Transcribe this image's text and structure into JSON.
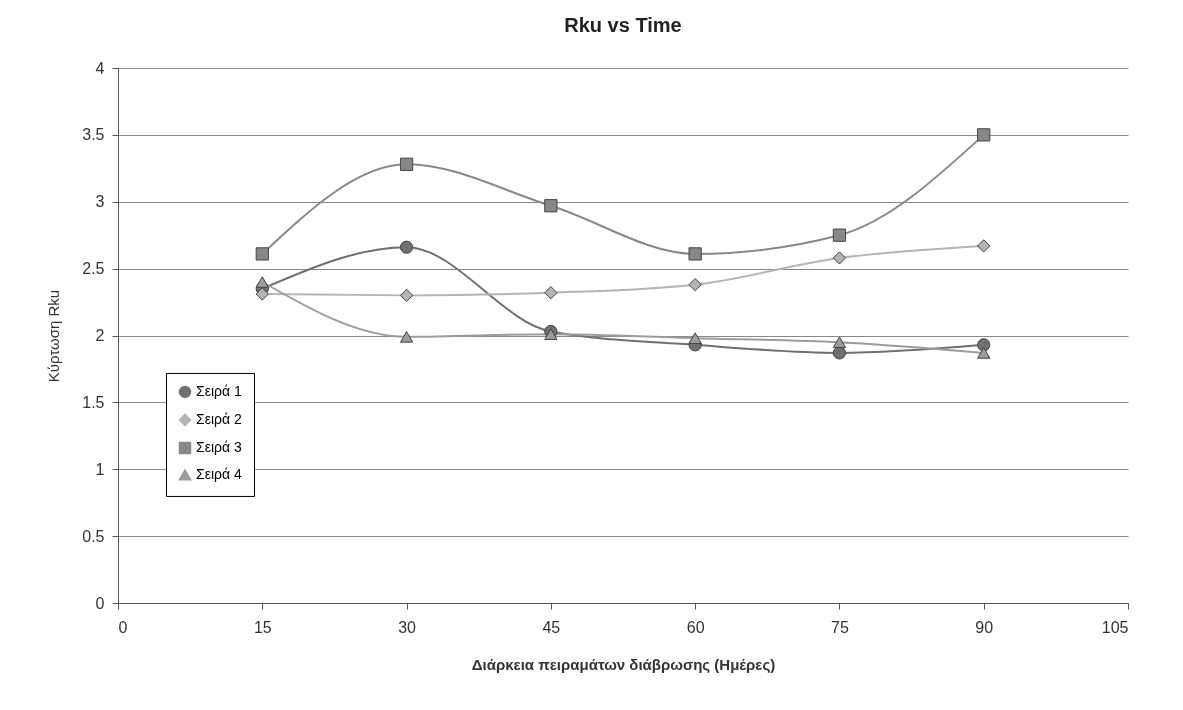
{
  "chart_data": {
    "type": "line",
    "title": "Rku vs Time",
    "xlabel": "Διάρκεια πειραμάτων διάβρωσης (Ημέρες)",
    "ylabel": "Κύρτωση Rku",
    "x": [
      15,
      30,
      45,
      60,
      75,
      90
    ],
    "series": [
      {
        "name": "Σειρά 1",
        "color": "#707070",
        "marker": "circle",
        "values": [
          2.35,
          2.66,
          2.03,
          1.93,
          1.87,
          1.93
        ]
      },
      {
        "name": "Σειρά 2",
        "color": "#b4b4b4",
        "marker": "diamond",
        "values": [
          2.31,
          2.3,
          2.32,
          2.38,
          2.58,
          2.67
        ]
      },
      {
        "name": "Σειρά 3",
        "color": "#888888",
        "marker": "square",
        "values": [
          2.61,
          3.28,
          2.97,
          2.61,
          2.75,
          3.5
        ]
      },
      {
        "name": "Σειρά 4",
        "color": "#9c9c9c",
        "marker": "triangle",
        "values": [
          2.4,
          1.99,
          2.01,
          1.98,
          1.95,
          1.87
        ]
      }
    ],
    "xlim": [
      0,
      105
    ],
    "xticks": [
      0,
      15,
      30,
      45,
      60,
      75,
      90,
      105
    ],
    "ylim": [
      0,
      4
    ],
    "yticks": [
      0,
      0.5,
      1,
      1.5,
      2,
      2.5,
      3,
      3.5,
      4
    ],
    "grid": "y",
    "legend": "left",
    "line_style": "solid"
  }
}
